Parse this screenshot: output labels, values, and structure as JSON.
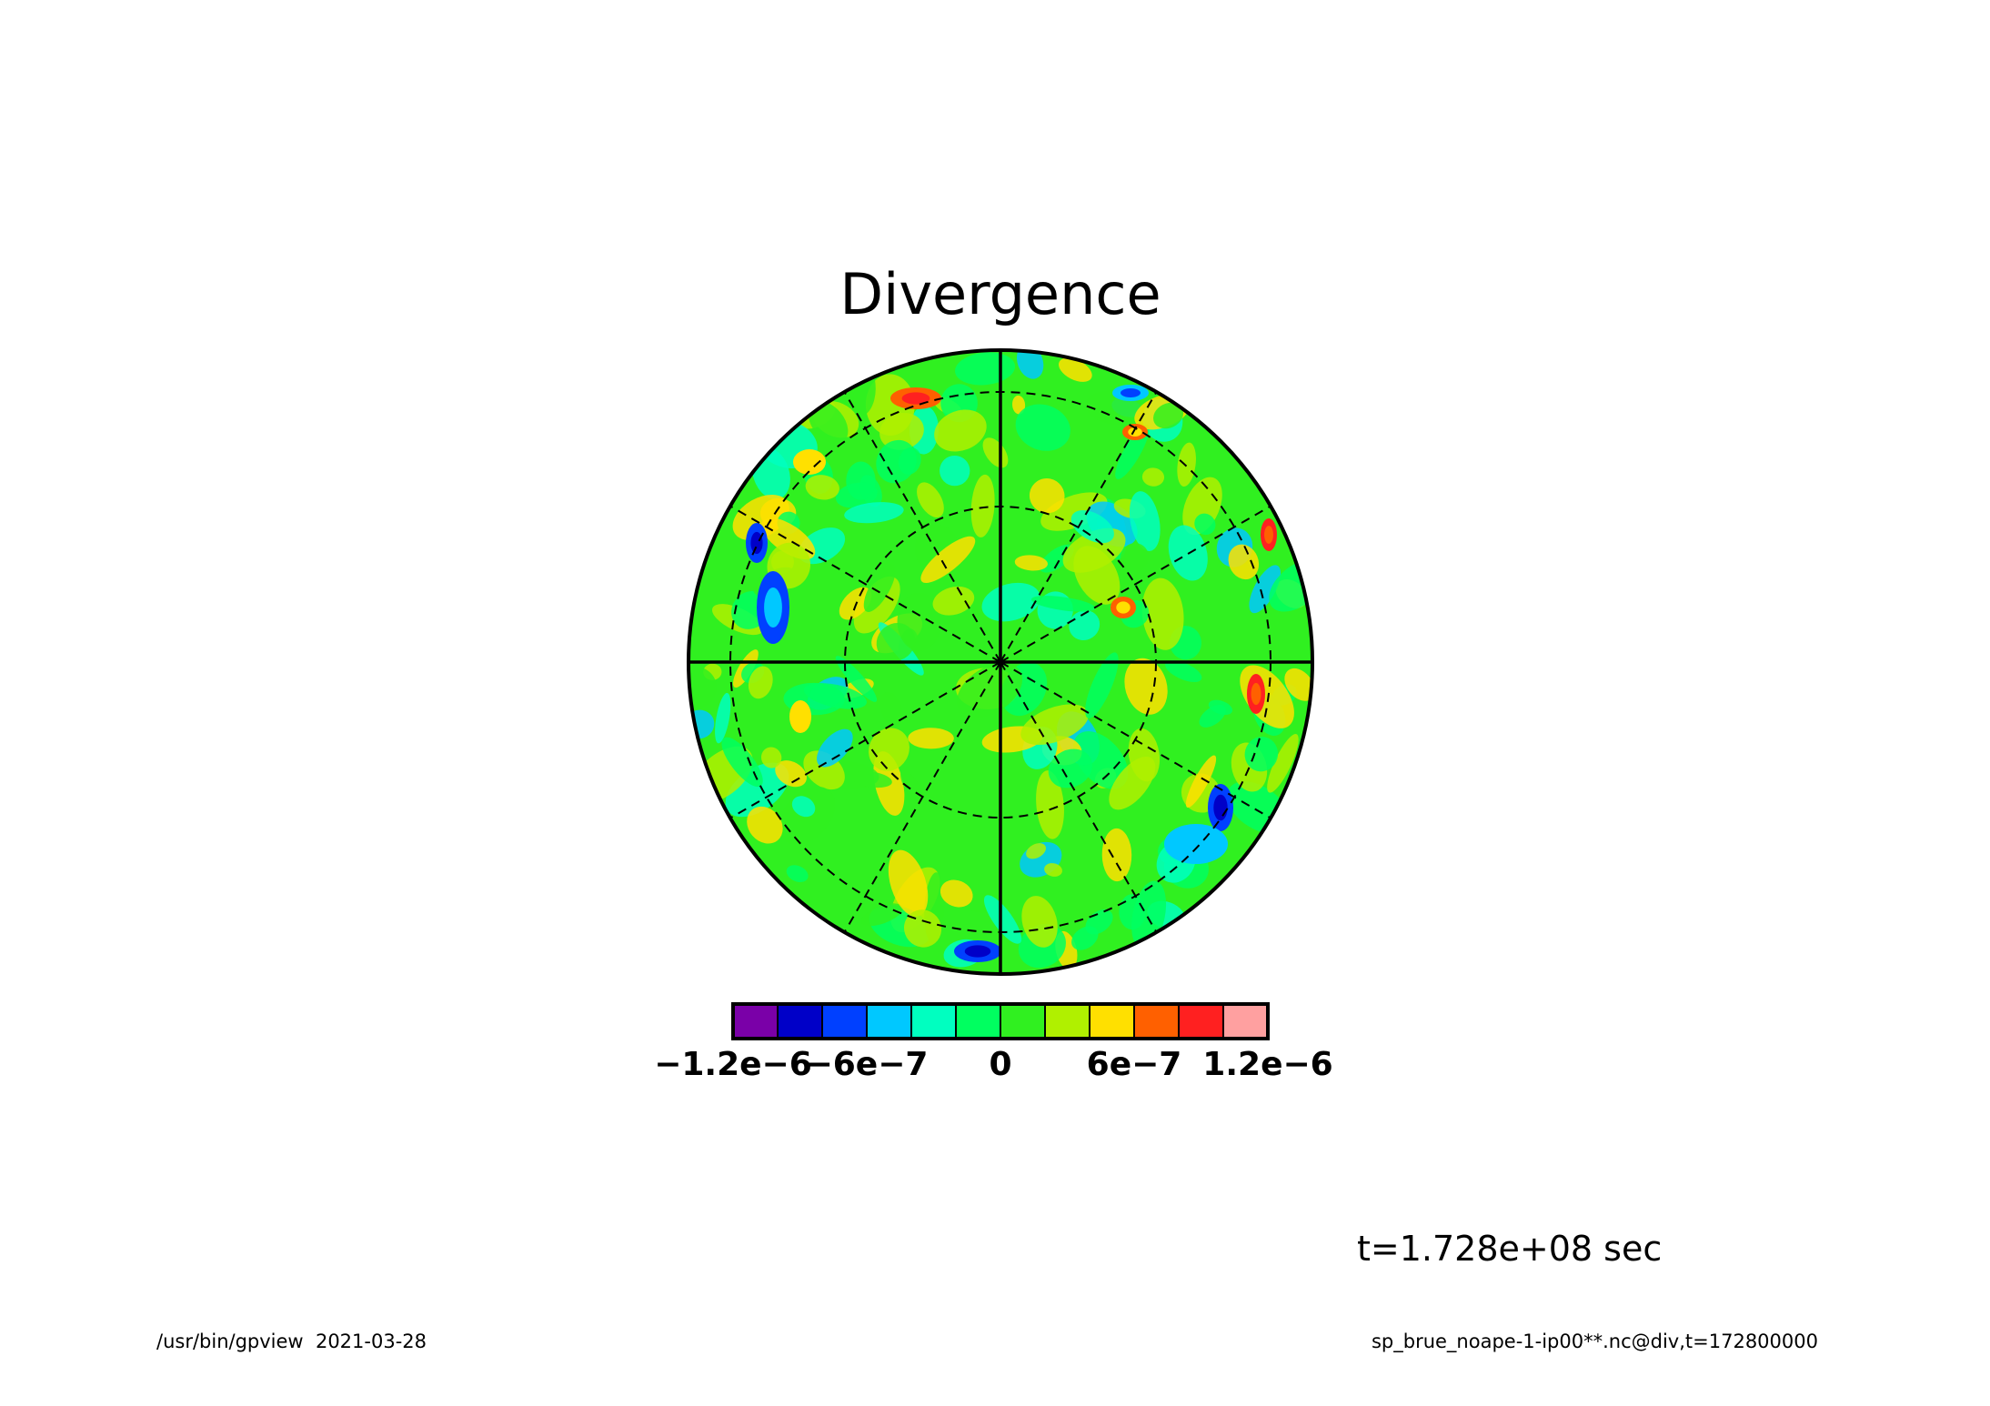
{
  "chart_data": {
    "type": "heatmap",
    "title": "Divergence",
    "projection": "polar-orthographic",
    "grid": true,
    "colorbar": {
      "placement": "bottom",
      "colors": [
        "#7a00a8",
        "#0000c8",
        "#0040ff",
        "#00c8ff",
        "#00ffc0",
        "#00ff60",
        "#30f020",
        "#b0f000",
        "#ffe000",
        "#ff6000",
        "#ff2020",
        "#ffa0a0"
      ],
      "ticks": [
        {
          "value": -1.2e-06,
          "label": "−1.2e−6"
        },
        {
          "value": -6e-07,
          "label": "−6e−7"
        },
        {
          "value": 0,
          "label": "0"
        },
        {
          "value": 6e-07,
          "label": "6e−7"
        },
        {
          "value": 1.2e-06,
          "label": "1.2e−6"
        }
      ],
      "range": [
        -1.2e-06,
        1.2e-06
      ]
    },
    "time_label": "t=1.728e+08 sec"
  },
  "footer": {
    "left": "/usr/bin/gpview  2021-03-28",
    "right": "sp_brue_noape-1-ip00**.nc@div,t=172800000"
  }
}
